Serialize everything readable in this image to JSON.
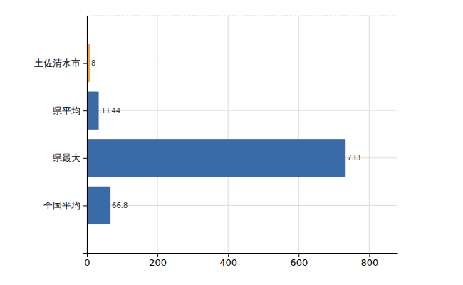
{
  "chart_data": {
    "type": "bar",
    "orientation": "horizontal",
    "categories": [
      "土佐清水市",
      "県平均",
      "県最大",
      "全国平均"
    ],
    "values": [
      8,
      33.44,
      733,
      66.8
    ],
    "colors": [
      "#f0a23a",
      "#3a6aa8",
      "#3a6aa8",
      "#3a6aa8"
    ],
    "xlim": [
      0,
      880
    ],
    "xticks": [
      0,
      200,
      400,
      600,
      800
    ],
    "grid": true,
    "data_labels": true
  }
}
